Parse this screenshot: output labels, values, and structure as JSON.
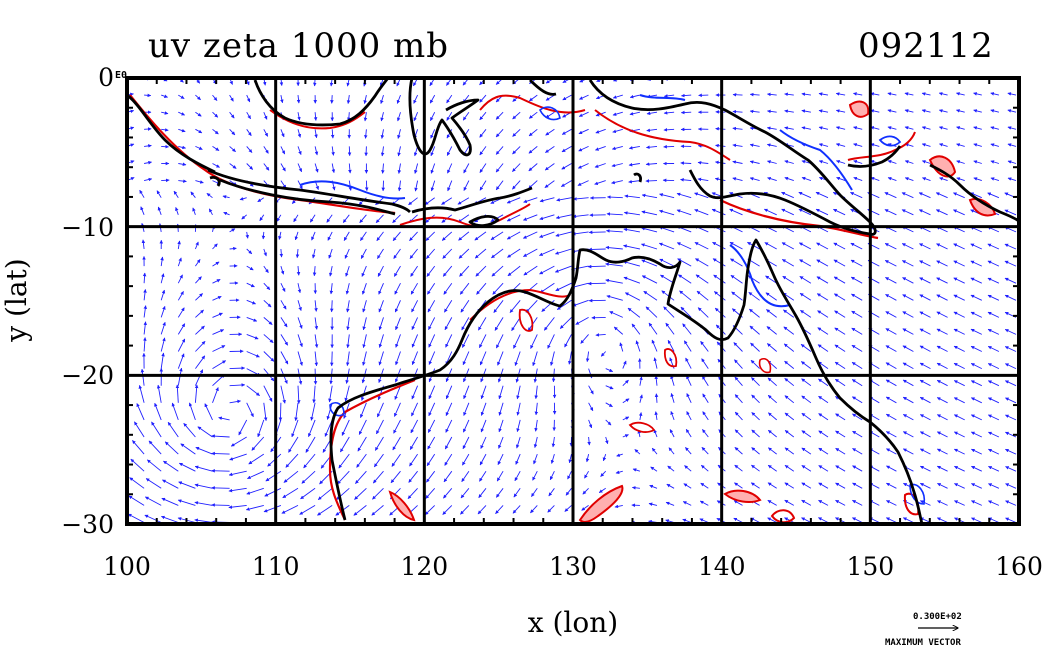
{
  "chart_data": {
    "type": "vector field with vorticity contours",
    "title": "uv zeta 1000 mb",
    "subtitle": "092112",
    "xlabel": "x (lon)",
    "ylabel": "y (lat)",
    "xlim": [
      100,
      160
    ],
    "ylim": [
      -30,
      0
    ],
    "xticks": [
      "100",
      "110",
      "120",
      "130",
      "140",
      "150",
      "160"
    ],
    "yticks": [
      "0",
      "−10",
      "−20",
      "−30"
    ],
    "x_tick_values": [
      100,
      110,
      120,
      130,
      140,
      150,
      160
    ],
    "y_tick_values": [
      0,
      -10,
      -20,
      -30
    ],
    "grid": true,
    "y_top_tick_suffix": "E0",
    "colors": {
      "vectors": "#2020ff",
      "positive_contour": "#e00000",
      "negative_contour": "#1030ff",
      "coastline": "#000000",
      "shading": "#ffb0b0"
    },
    "vector_key": {
      "value": "0.300E+02",
      "label": "MAXIMUM VECTOR"
    }
  }
}
